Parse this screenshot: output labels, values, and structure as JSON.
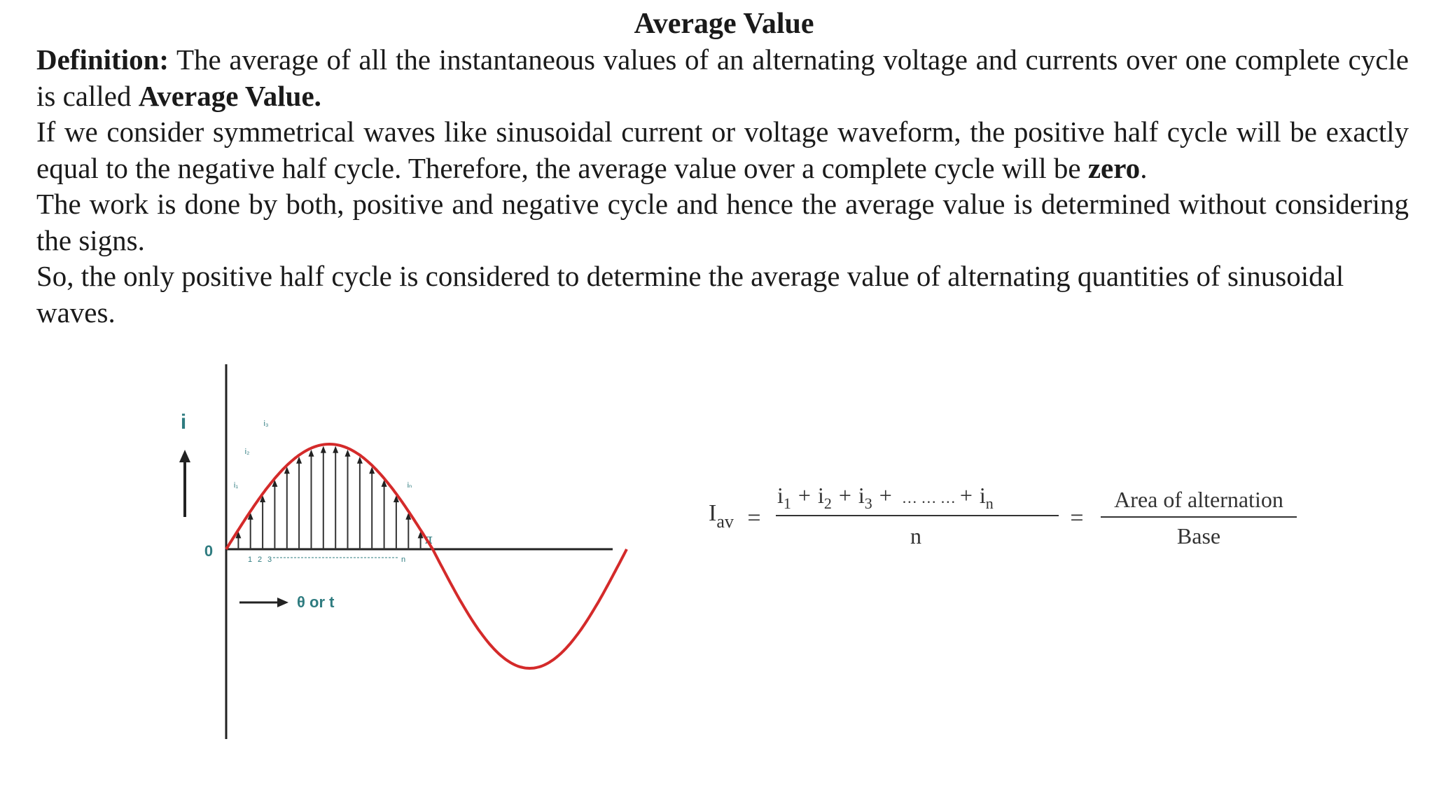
{
  "document": {
    "title": "Average Value",
    "paragraphs": {
      "p1": {
        "lead": "Definition:",
        "text": " The average of all the instantaneous values of an alternating voltage and currents over one complete cycle is called ",
        "bold_tail": "Average Value."
      },
      "p2": {
        "text": "If we consider symmetrical waves like sinusoidal current or voltage waveform, the positive half cycle will be exactly equal to the negative half cycle. Therefore, the average value over a complete cycle will be ",
        "bold": "zero",
        "tail": "."
      },
      "p3": {
        "text": "The work is done by both, positive and negative cycle and hence the average value is determined without considering the signs."
      },
      "p4": {
        "text": "So, the only positive half cycle is considered to determine the average value of alternating quantities of sinusoidal waves."
      }
    }
  },
  "waveform": {
    "y_axis_label": "i",
    "origin_label": "0",
    "pi_label": "π",
    "x_axis_label": "θ or t",
    "ordinate_labels": [
      "i₁",
      "i₂",
      "i₃",
      "iₙ"
    ],
    "tick_numbers": [
      "1",
      "2",
      "3",
      "n"
    ],
    "wave_color": "#d42a2a",
    "axis_color": "#222222",
    "label_color": "#2f7c80",
    "icons": [
      "up-arrow-icon",
      "right-arrow-icon"
    ]
  },
  "formula": {
    "lhs": "I",
    "lhs_sub": "av",
    "equals": "=",
    "numerator_terms": {
      "t1": "i",
      "t1_sub": "1",
      "plus1": "+",
      "t2": "i",
      "t2_sub": "2",
      "plus2": "+",
      "t3": "i",
      "t3_sub": "3",
      "plus3": "+",
      "dots": "… … …",
      "plus4": "+",
      "tn": "i",
      "tn_sub": "n"
    },
    "denominator": "n",
    "equals2": "=",
    "rhs_numerator": "Area of alternation",
    "rhs_denominator": "Base"
  }
}
